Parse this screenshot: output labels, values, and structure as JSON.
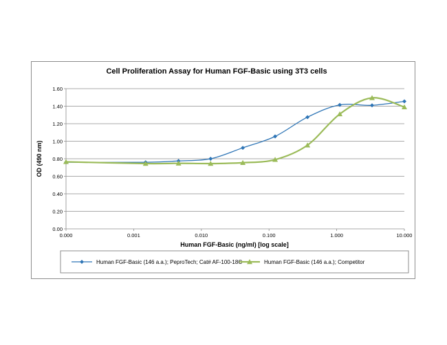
{
  "chart_data": {
    "type": "line",
    "title": "Cell Proliferation Assay for Human FGF-Basic using 3T3 cells",
    "xlabel": "Human FGF-Basic (ng/ml) [log scale]",
    "ylabel": "OD (490 nm)",
    "x_scale": "log",
    "xlim": [
      0.0001,
      10
    ],
    "ylim": [
      0,
      1.6
    ],
    "x_ticks": [
      0.0001,
      0.001,
      0.01,
      0.1,
      1,
      10
    ],
    "x_tick_labels": [
      "0.000",
      "0.001",
      "0.010",
      "0.100",
      "1.000",
      "10.000"
    ],
    "y_ticks": [
      0,
      0.2,
      0.4,
      0.6,
      0.8,
      1.0,
      1.2,
      1.4,
      1.6
    ],
    "y_tick_labels": [
      "0.00",
      "0.20",
      "0.40",
      "0.60",
      "0.80",
      "1.00",
      "1.20",
      "1.40",
      "1.60"
    ],
    "grid": "horizontal",
    "legend_position": "bottom",
    "series": [
      {
        "name": "Human FGF-Basic (146 a.a.); PeproTech; Cat# AF-100-18C",
        "color": "#2e75b6",
        "marker": "diamond",
        "x": [
          0.0001,
          0.0015,
          0.0046,
          0.0137,
          0.041,
          0.123,
          0.37,
          1.11,
          3.33,
          10
        ],
        "y": [
          0.76,
          0.76,
          0.775,
          0.8,
          0.925,
          1.055,
          1.275,
          1.415,
          1.41,
          1.455
        ]
      },
      {
        "name": "Human FGF-Basic (146 a.a.); Competitor",
        "color": "#9bbb59",
        "marker": "triangle",
        "x": [
          0.0001,
          0.0015,
          0.0046,
          0.0137,
          0.041,
          0.123,
          0.37,
          1.11,
          3.33,
          10
        ],
        "y": [
          0.765,
          0.745,
          0.748,
          0.745,
          0.755,
          0.79,
          0.955,
          1.31,
          1.495,
          1.39
        ]
      }
    ]
  }
}
